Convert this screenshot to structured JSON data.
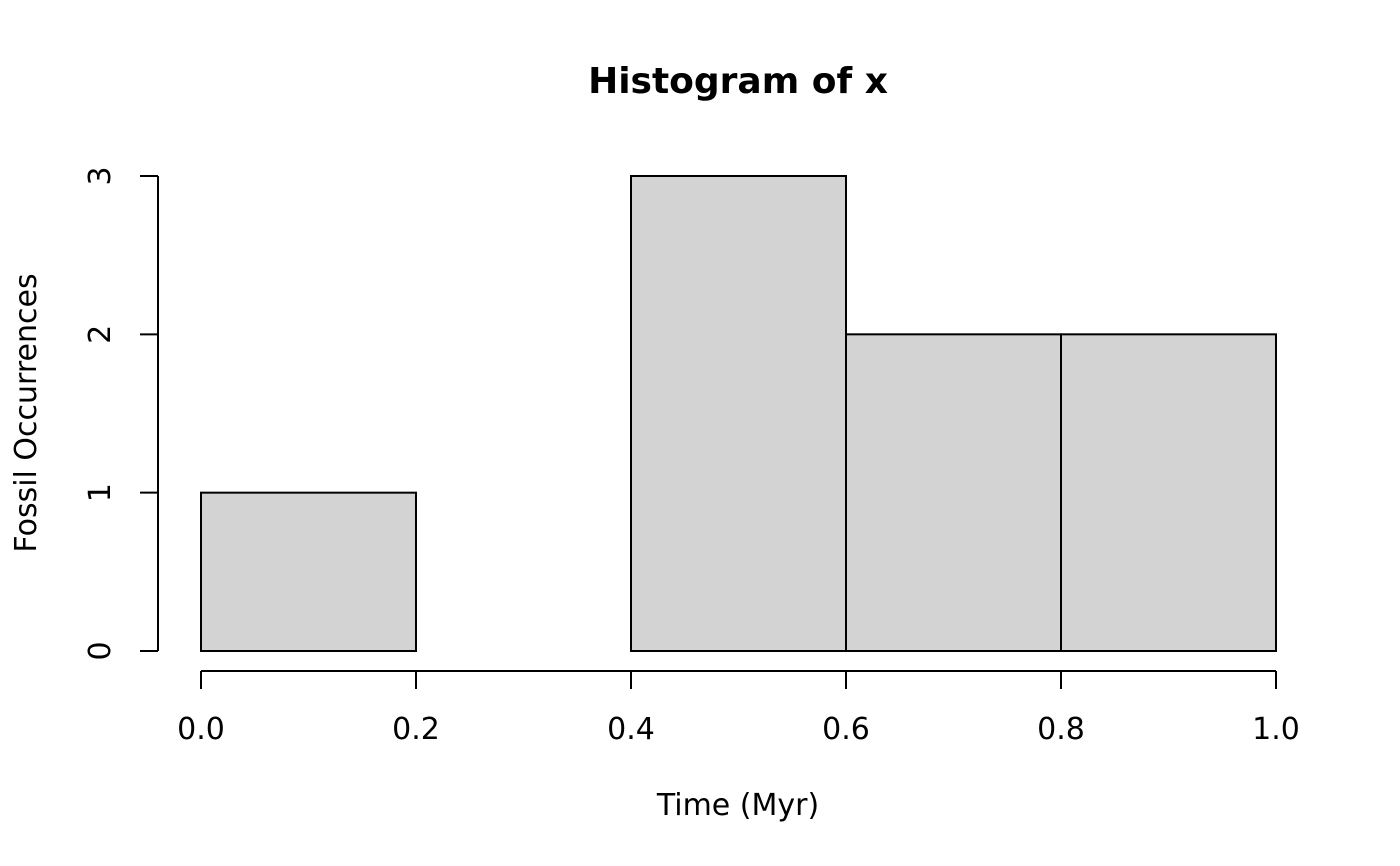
{
  "chart_data": {
    "type": "bar",
    "title": "Histogram of x",
    "xlabel": "Time (Myr)",
    "ylabel": "Fossil Occurrences",
    "bins": [
      {
        "start": 0.0,
        "end": 0.2,
        "count": 1
      },
      {
        "start": 0.2,
        "end": 0.4,
        "count": 0
      },
      {
        "start": 0.4,
        "end": 0.6,
        "count": 3
      },
      {
        "start": 0.6,
        "end": 0.8,
        "count": 2
      },
      {
        "start": 0.8,
        "end": 1.0,
        "count": 2
      }
    ],
    "xlim": [
      0.0,
      1.0
    ],
    "ylim": [
      0,
      3
    ],
    "x_ticks": [
      "0.0",
      "0.2",
      "0.4",
      "0.6",
      "0.8",
      "1.0"
    ],
    "y_ticks": [
      "0",
      "1",
      "2",
      "3"
    ],
    "bar_fill": "#d3d3d3",
    "bar_stroke": "#000000",
    "grid": false,
    "legend": "none"
  }
}
